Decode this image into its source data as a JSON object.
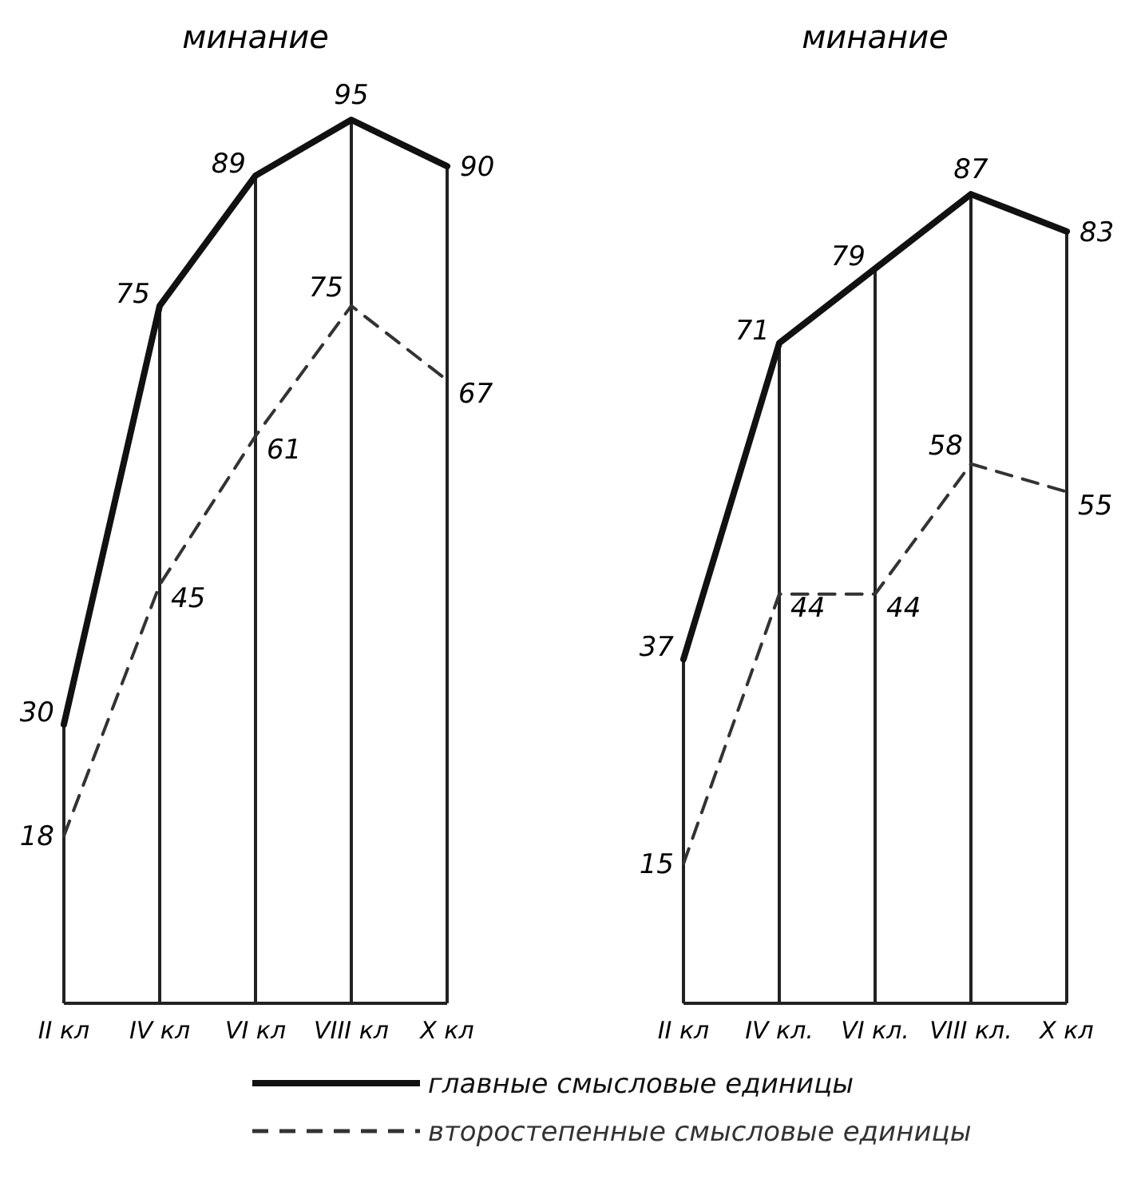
{
  "chart_data": [
    {
      "type": "line",
      "title": "минание",
      "categories": [
        "II кл",
        "IV кл",
        "VI кл",
        "VIII кл",
        "X кл"
      ],
      "tick_labels": "x",
      "grid": "x",
      "data_labels": true,
      "marker": "none",
      "legend": false,
      "series": [
        {
          "color": "#111111",
          "line_style": "solid",
          "values": [
            30,
            75,
            89,
            95,
            90
          ]
        },
        {
          "color": "#333333",
          "line_style": "dashed",
          "values": [
            18,
            45,
            61,
            75,
            67
          ]
        }
      ]
    },
    {
      "type": "line",
      "title": "минание",
      "categories": [
        "II кл",
        "IV кл.",
        "VI кл.",
        "VIII кл.",
        "X кл"
      ],
      "tick_labels": "x",
      "grid": "x",
      "data_labels": true,
      "marker": "none",
      "legend": "bottom",
      "series": [
        {
          "name": "главные смысловые единицы",
          "color": "#111111",
          "line_style": "solid",
          "values": [
            37,
            71,
            79,
            87,
            83
          ]
        },
        {
          "name": "второстепенные смысловые единицы",
          "color": "#333333",
          "line_style": "dashed",
          "values": [
            15,
            44,
            44,
            58,
            55
          ]
        }
      ]
    }
  ]
}
